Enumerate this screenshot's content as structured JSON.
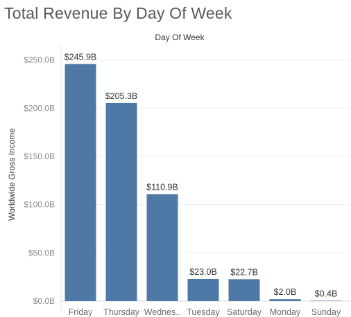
{
  "chart_data": {
    "type": "bar",
    "title": "Total Revenue By Day Of Week",
    "column_header": "Day Of Week",
    "ylabel": "Worldwide Gross Income",
    "categories": [
      "Friday",
      "Thursday",
      "Wednes..",
      "Tuesday",
      "Saturday",
      "Monday",
      "Sunday"
    ],
    "values": [
      245.9,
      205.3,
      110.9,
      23.0,
      22.7,
      2.0,
      0.4
    ],
    "value_labels": [
      "$245.9B",
      "$205.3B",
      "$110.9B",
      "$23.0B",
      "$22.7B",
      "$2.0B",
      "$0.4B"
    ],
    "yticks": [
      0,
      50,
      100,
      150,
      200,
      250
    ],
    "ytick_labels": [
      "$0.0B",
      "$50.0B",
      "$100.0B",
      "$150.0B",
      "$200.0B",
      "$250.0B"
    ],
    "ylim": [
      0,
      262
    ],
    "grid": true,
    "bar_color": "#4e79a7",
    "legend": "none"
  }
}
